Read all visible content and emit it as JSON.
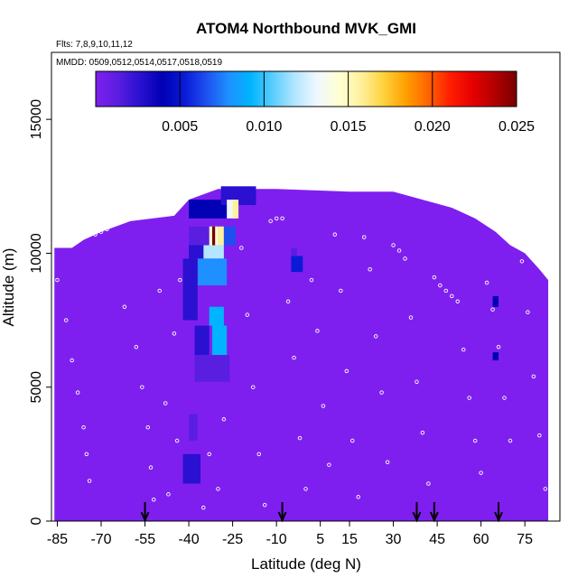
{
  "chart_data": {
    "type": "heatmap",
    "title": "ATOM4 Northbound MVK_GMI",
    "flights_note": "Flts: 7,8,9,10,11,12",
    "dates_note": "MMDD: 0509,0512,0514,0517,0518,0519",
    "xlabel": "Latitude (deg N)",
    "ylabel": "Altitude (m)",
    "xlim": [
      -87,
      87
    ],
    "ylim": [
      0,
      17500
    ],
    "x_ticks": [
      -85,
      -70,
      -55,
      -40,
      -25,
      -10,
      5,
      15,
      30,
      45,
      60,
      75
    ],
    "x_tick_labels": [
      "-85",
      "-70",
      "-55",
      "-40",
      "-25",
      "-10",
      "5",
      "15",
      "30",
      "45",
      "60",
      "75"
    ],
    "y_ticks": [
      0,
      5000,
      10000,
      15000
    ],
    "y_tick_labels": [
      "0",
      "5000",
      "10000",
      "15000"
    ],
    "colorbar": {
      "min": 0.0,
      "max": 0.025,
      "ticks": [
        0.005,
        0.01,
        0.015,
        0.02,
        0.025
      ],
      "tick_labels": [
        "0.005",
        "0.010",
        "0.015",
        "0.020",
        "0.025"
      ],
      "colors": [
        "#7f1fef",
        "#5a1ee0",
        "#2a10d0",
        "#0000b4",
        "#0a1ad6",
        "#1e50f0",
        "#1e90ff",
        "#00b4ff",
        "#5acdff",
        "#b4e6ff",
        "#f0f8ff",
        "#ffffd2",
        "#fff09c",
        "#ffd23c",
        "#ffa000",
        "#ff6400",
        "#ff1e00",
        "#e60000",
        "#b40000",
        "#780000"
      ]
    },
    "background_value": 0.0005,
    "profile_envelope": [
      {
        "lat": -86,
        "top": 10200
      },
      {
        "lat": -80,
        "top": 10200
      },
      {
        "lat": -76,
        "top": 10500
      },
      {
        "lat": -70,
        "top": 10800
      },
      {
        "lat": -60,
        "top": 11200
      },
      {
        "lat": -45,
        "top": 11400
      },
      {
        "lat": -40,
        "top": 12000
      },
      {
        "lat": -30,
        "top": 12400
      },
      {
        "lat": -10,
        "top": 12400
      },
      {
        "lat": 15,
        "top": 12300
      },
      {
        "lat": 30,
        "top": 12300
      },
      {
        "lat": 40,
        "top": 12000
      },
      {
        "lat": 50,
        "top": 11700
      },
      {
        "lat": 58,
        "top": 11300
      },
      {
        "lat": 65,
        "top": 10800
      },
      {
        "lat": 70,
        "top": 10300
      },
      {
        "lat": 75,
        "top": 10000
      },
      {
        "lat": 80,
        "top": 9400
      },
      {
        "lat": 83,
        "top": 9000
      }
    ],
    "cells": [
      {
        "lat0": -40,
        "lat1": -25,
        "alt0": 11300,
        "alt1": 12000,
        "value": 0.004
      },
      {
        "lat0": -29,
        "lat1": -17,
        "alt0": 11800,
        "alt1": 12500,
        "value": 0.003
      },
      {
        "lat0": -27,
        "lat1": -24,
        "alt0": 11300,
        "alt1": 12000,
        "value": 0.013
      },
      {
        "lat0": -25,
        "lat1": -23,
        "alt0": 11300,
        "alt1": 12000,
        "value": 0.016
      },
      {
        "lat0": -40,
        "lat1": -33,
        "alt0": 10300,
        "alt1": 11000,
        "value": 0.002
      },
      {
        "lat0": -33,
        "lat1": -30,
        "alt0": 10300,
        "alt1": 11000,
        "value": 0.014
      },
      {
        "lat0": -32,
        "lat1": -31,
        "alt0": 10300,
        "alt1": 11000,
        "value": 0.024
      },
      {
        "lat0": -30,
        "lat1": -28,
        "alt0": 10300,
        "alt1": 11000,
        "value": 0.016
      },
      {
        "lat0": -28,
        "lat1": -24,
        "alt0": 10300,
        "alt1": 11000,
        "value": 0.007
      },
      {
        "lat0": -35,
        "lat1": -28,
        "alt0": 9800,
        "alt1": 10300,
        "value": 0.012
      },
      {
        "lat0": -40,
        "lat1": -35,
        "alt0": 9800,
        "alt1": 10300,
        "value": 0.003
      },
      {
        "lat0": -37,
        "lat1": -27,
        "alt0": 8800,
        "alt1": 9800,
        "value": 0.008
      },
      {
        "lat0": -42,
        "lat1": -37,
        "alt0": 7500,
        "alt1": 9800,
        "value": 0.003
      },
      {
        "lat0": -33,
        "lat1": -28,
        "alt0": 7300,
        "alt1": 8000,
        "value": 0.009
      },
      {
        "lat0": -32,
        "lat1": -27,
        "alt0": 6200,
        "alt1": 7300,
        "value": 0.01
      },
      {
        "lat0": -38,
        "lat1": -33,
        "alt0": 6200,
        "alt1": 7300,
        "value": 0.003
      },
      {
        "lat0": -38,
        "lat1": -26,
        "alt0": 5200,
        "alt1": 6200,
        "value": 0.002
      },
      {
        "lat0": -40,
        "lat1": -28,
        "alt0": 4000,
        "alt1": 5000,
        "value": 0.001
      },
      {
        "lat0": -40,
        "lat1": -37,
        "alt0": 3000,
        "alt1": 4000,
        "value": 0.002
      },
      {
        "lat0": -42,
        "lat1": -36,
        "alt0": 1400,
        "alt1": 2500,
        "value": 0.003
      },
      {
        "lat0": -15,
        "lat1": -7,
        "alt0": 4000,
        "alt1": 5000,
        "value": 0.001
      },
      {
        "lat0": -5,
        "lat1": -1,
        "alt0": 9300,
        "alt1": 9900,
        "value": 0.006
      },
      {
        "lat0": -5,
        "lat1": -3,
        "alt0": 9900,
        "alt1": 10200,
        "value": 0.002
      },
      {
        "lat0": 64,
        "lat1": 66,
        "alt0": 6000,
        "alt1": 6300,
        "value": 0.004
      },
      {
        "lat0": 64,
        "lat1": 66,
        "alt0": 8000,
        "alt1": 8400,
        "value": 0.004
      }
    ],
    "samples": [
      {
        "lat": -85,
        "alt": 9000
      },
      {
        "lat": -82,
        "alt": 7500
      },
      {
        "lat": -80,
        "alt": 6000
      },
      {
        "lat": -78,
        "alt": 4800
      },
      {
        "lat": -76,
        "alt": 3500
      },
      {
        "lat": -75,
        "alt": 2500
      },
      {
        "lat": -74,
        "alt": 1500
      },
      {
        "lat": -72,
        "alt": 10700
      },
      {
        "lat": -70,
        "alt": 10800
      },
      {
        "lat": -68,
        "alt": 10900
      },
      {
        "lat": -62,
        "alt": 8000
      },
      {
        "lat": -58,
        "alt": 6500
      },
      {
        "lat": -56,
        "alt": 5000
      },
      {
        "lat": -54,
        "alt": 3500
      },
      {
        "lat": -53,
        "alt": 2000
      },
      {
        "lat": -52,
        "alt": 800
      },
      {
        "lat": -50,
        "alt": 8600
      },
      {
        "lat": -48,
        "alt": 4400
      },
      {
        "lat": -47,
        "alt": 1000
      },
      {
        "lat": -45,
        "alt": 7000
      },
      {
        "lat": -44,
        "alt": 3000
      },
      {
        "lat": -43,
        "alt": 9000
      },
      {
        "lat": -35,
        "alt": 500
      },
      {
        "lat": -33,
        "alt": 2500
      },
      {
        "lat": -30,
        "alt": 1200
      },
      {
        "lat": -28,
        "alt": 3800
      },
      {
        "lat": -22,
        "alt": 10200
      },
      {
        "lat": -20,
        "alt": 7700
      },
      {
        "lat": -18,
        "alt": 5000
      },
      {
        "lat": -16,
        "alt": 2500
      },
      {
        "lat": -14,
        "alt": 600
      },
      {
        "lat": -12,
        "alt": 11200
      },
      {
        "lat": -10,
        "alt": 11300
      },
      {
        "lat": -8,
        "alt": 11300
      },
      {
        "lat": -6,
        "alt": 8200
      },
      {
        "lat": -4,
        "alt": 6100
      },
      {
        "lat": -2,
        "alt": 3100
      },
      {
        "lat": 0,
        "alt": 1200
      },
      {
        "lat": 2,
        "alt": 9000
      },
      {
        "lat": 4,
        "alt": 7100
      },
      {
        "lat": 6,
        "alt": 4300
      },
      {
        "lat": 8,
        "alt": 2100
      },
      {
        "lat": 10,
        "alt": 10700
      },
      {
        "lat": 12,
        "alt": 8600
      },
      {
        "lat": 14,
        "alt": 5600
      },
      {
        "lat": 16,
        "alt": 3000
      },
      {
        "lat": 18,
        "alt": 900
      },
      {
        "lat": 20,
        "alt": 10600
      },
      {
        "lat": 22,
        "alt": 9400
      },
      {
        "lat": 24,
        "alt": 6900
      },
      {
        "lat": 26,
        "alt": 4800
      },
      {
        "lat": 28,
        "alt": 2200
      },
      {
        "lat": 30,
        "alt": 10300
      },
      {
        "lat": 32,
        "alt": 10100
      },
      {
        "lat": 34,
        "alt": 9800
      },
      {
        "lat": 36,
        "alt": 7600
      },
      {
        "lat": 38,
        "alt": 5200
      },
      {
        "lat": 40,
        "alt": 3300
      },
      {
        "lat": 42,
        "alt": 1400
      },
      {
        "lat": 44,
        "alt": 9100
      },
      {
        "lat": 46,
        "alt": 8800
      },
      {
        "lat": 48,
        "alt": 8600
      },
      {
        "lat": 50,
        "alt": 8400
      },
      {
        "lat": 52,
        "alt": 8200
      },
      {
        "lat": 54,
        "alt": 6400
      },
      {
        "lat": 56,
        "alt": 4600
      },
      {
        "lat": 58,
        "alt": 3000
      },
      {
        "lat": 60,
        "alt": 1800
      },
      {
        "lat": 62,
        "alt": 8900
      },
      {
        "lat": 64,
        "alt": 7900
      },
      {
        "lat": 66,
        "alt": 6500
      },
      {
        "lat": 68,
        "alt": 4600
      },
      {
        "lat": 70,
        "alt": 3000
      },
      {
        "lat": 72,
        "alt": 10500
      },
      {
        "lat": 74,
        "alt": 9700
      },
      {
        "lat": 76,
        "alt": 7800
      },
      {
        "lat": 78,
        "alt": 5400
      },
      {
        "lat": 80,
        "alt": 3200
      },
      {
        "lat": 82,
        "alt": 1200
      },
      {
        "lat": 84,
        "alt": 8600
      }
    ],
    "surface_arrows": [
      -55,
      -8,
      38,
      44,
      66
    ]
  }
}
